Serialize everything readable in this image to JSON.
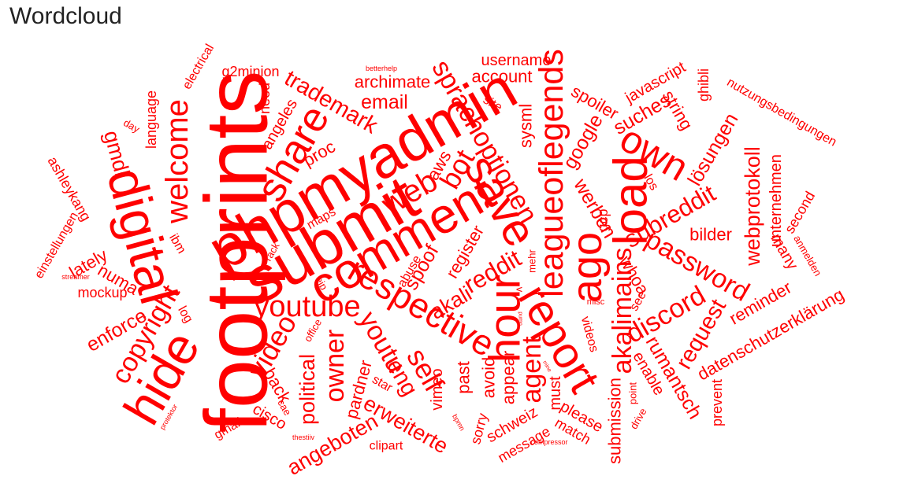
{
  "title": "Wordcloud",
  "word_color": "#ff0000",
  "words": [
    {
      "text": "footprints",
      "weight": 100,
      "rotate": -90
    },
    {
      "text": "submit",
      "weight": 72,
      "rotate": -30
    },
    {
      "text": "phpmyadmin",
      "weight": 68,
      "rotate": -30
    },
    {
      "text": "digital",
      "weight": 60,
      "rotate": 75
    },
    {
      "text": "hide",
      "weight": 58,
      "rotate": -60
    },
    {
      "text": "comment",
      "weight": 56,
      "rotate": -30
    },
    {
      "text": "load",
      "weight": 54,
      "rotate": -90
    },
    {
      "text": "save",
      "weight": 52,
      "rotate": 60
    },
    {
      "text": "hour",
      "weight": 50,
      "rotate": -90
    },
    {
      "text": "report",
      "weight": 50,
      "rotate": 60
    },
    {
      "text": "ago",
      "weight": 48,
      "rotate": -90
    },
    {
      "text": "share",
      "weight": 46,
      "rotate": -60
    },
    {
      "text": "own",
      "weight": 44,
      "rotate": 30
    },
    {
      "text": "respective",
      "weight": 40,
      "rotate": 30
    },
    {
      "text": "leagueoflegends",
      "weight": 38,
      "rotate": -90
    },
    {
      "text": "welcome",
      "weight": 36,
      "rotate": -90
    },
    {
      "text": "web",
      "weight": 36,
      "rotate": -30
    },
    {
      "text": "youtube",
      "weight": 34,
      "rotate": 0
    },
    {
      "text": "sprachoptionen",
      "weight": 30,
      "rotate": 60
    },
    {
      "text": "bot",
      "weight": 32,
      "rotate": -60
    },
    {
      "text": "self",
      "weight": 32,
      "rotate": 60
    },
    {
      "text": "video",
      "weight": 32,
      "rotate": -60
    },
    {
      "text": "akalimains",
      "weight": 30,
      "rotate": -90
    },
    {
      "text": "password",
      "weight": 30,
      "rotate": 30
    },
    {
      "text": "discord",
      "weight": 30,
      "rotate": -30
    },
    {
      "text": "copyright",
      "weight": 30,
      "rotate": -60
    },
    {
      "text": "owner",
      "weight": 30,
      "rotate": -90
    },
    {
      "text": "youtu",
      "weight": 30,
      "rotate": 60
    },
    {
      "text": "agent",
      "weight": 30,
      "rotate": -90
    },
    {
      "text": "subreddit",
      "weight": 28,
      "rotate": -30
    },
    {
      "text": "reddit",
      "weight": 28,
      "rotate": -30
    },
    {
      "text": "trademark",
      "weight": 26,
      "rotate": 30
    },
    {
      "text": "eng",
      "weight": 26,
      "rotate": 60
    },
    {
      "text": "request",
      "weight": 26,
      "rotate": -60
    },
    {
      "text": "webprotokoll",
      "weight": 24,
      "rotate": -90
    },
    {
      "text": "gmdl",
      "weight": 24,
      "rotate": 75
    },
    {
      "text": "angeboten",
      "weight": 24,
      "rotate": -30
    },
    {
      "text": "erweiterte",
      "weight": 24,
      "rotate": 30
    },
    {
      "text": "political",
      "weight": 24,
      "rotate": -90
    },
    {
      "text": "akali",
      "weight": 24,
      "rotate": -30
    },
    {
      "text": "spoof",
      "weight": 22,
      "rotate": -60
    },
    {
      "text": "google",
      "weight": 22,
      "rotate": -60
    },
    {
      "text": "suches",
      "weight": 22,
      "rotate": -30
    },
    {
      "text": "email",
      "weight": 22,
      "rotate": 0
    },
    {
      "text": "lösungen",
      "weight": 22,
      "rotate": -60
    },
    {
      "text": "werben",
      "weight": 22,
      "rotate": 60
    },
    {
      "text": "rumantsch",
      "weight": 22,
      "rotate": 60
    },
    {
      "text": "enforce",
      "weight": 22,
      "rotate": -30
    },
    {
      "text": "datenschutzerklärung",
      "weight": 20,
      "rotate": -30
    },
    {
      "text": "spoiler",
      "weight": 20,
      "rotate": 30
    },
    {
      "text": "archimate",
      "weight": 20,
      "rotate": 0
    },
    {
      "text": "proc",
      "weight": 20,
      "rotate": -30
    },
    {
      "text": "pardner",
      "weight": 20,
      "rotate": -75
    },
    {
      "text": "submission",
      "weight": 20,
      "rotate": -90
    },
    {
      "text": "whoa",
      "weight": 20,
      "rotate": 60
    },
    {
      "text": "account",
      "weight": 20,
      "rotate": 0
    },
    {
      "text": "username",
      "weight": 18,
      "rotate": 0
    },
    {
      "text": "string",
      "weight": 20,
      "rotate": 60
    },
    {
      "text": "reminder",
      "weight": 20,
      "rotate": -30
    },
    {
      "text": "sysml",
      "weight": 20,
      "rotate": -90
    },
    {
      "text": "bilder",
      "weight": 20,
      "rotate": 0
    },
    {
      "text": "lately",
      "weight": 20,
      "rotate": -30
    },
    {
      "text": "numa",
      "weight": 20,
      "rotate": 30
    },
    {
      "text": "register",
      "weight": 20,
      "rotate": -60
    },
    {
      "text": "back",
      "weight": 20,
      "rotate": 60
    },
    {
      "text": "avoid",
      "weight": 20,
      "rotate": -90
    },
    {
      "text": "past",
      "weight": 20,
      "rotate": -90
    },
    {
      "text": "appear",
      "weight": 20,
      "rotate": -90
    },
    {
      "text": "aws",
      "weight": 20,
      "rotate": -60
    },
    {
      "text": "angeles",
      "weight": 18,
      "rotate": -60
    },
    {
      "text": "javascript",
      "weight": 18,
      "rotate": -30
    },
    {
      "text": "unternehmen",
      "weight": 18,
      "rotate": -90
    },
    {
      "text": "many",
      "weight": 18,
      "rotate": 60
    },
    {
      "text": "cisco",
      "weight": 18,
      "rotate": 30
    },
    {
      "text": "schweiz",
      "weight": 18,
      "rotate": -30
    },
    {
      "text": "vimeo",
      "weight": 18,
      "rotate": -90
    },
    {
      "text": "please",
      "weight": 18,
      "rotate": 30
    },
    {
      "text": "must",
      "weight": 18,
      "rotate": -90
    },
    {
      "text": "enable",
      "weight": 18,
      "rotate": 60
    },
    {
      "text": "language",
      "weight": 16,
      "rotate": -90
    },
    {
      "text": "g2minion",
      "weight": 16,
      "rotate": 0
    },
    {
      "text": "need",
      "weight": 16,
      "rotate": -90
    },
    {
      "text": "ashleykang",
      "weight": 16,
      "rotate": 60
    },
    {
      "text": "ghibli",
      "weight": 16,
      "rotate": -90
    },
    {
      "text": "gcp",
      "weight": 16,
      "rotate": -90
    },
    {
      "text": "second",
      "weight": 16,
      "rotate": -60
    },
    {
      "text": "match",
      "weight": 16,
      "rotate": 30
    },
    {
      "text": "message",
      "weight": 16,
      "rotate": -30
    },
    {
      "text": "sorry",
      "weight": 16,
      "rotate": -75
    },
    {
      "text": "prevent",
      "weight": 16,
      "rotate": -90
    },
    {
      "text": "mockup",
      "weight": 16,
      "rotate": 0
    },
    {
      "text": "nutzungsbedingungen",
      "weight": 14,
      "rotate": 30
    },
    {
      "text": "electrical",
      "weight": 14,
      "rotate": -60
    },
    {
      "text": "einstellungen",
      "weight": 14,
      "rotate": -60
    },
    {
      "text": "abuse",
      "weight": 14,
      "rotate": -60
    },
    {
      "text": "videos",
      "weight": 14,
      "rotate": 75
    },
    {
      "text": "maps",
      "weight": 14,
      "rotate": -30
    },
    {
      "text": "gmail",
      "weight": 14,
      "rotate": -30
    },
    {
      "text": "clipart",
      "weight": 14,
      "rotate": 0
    },
    {
      "text": "los",
      "weight": 14,
      "rotate": 60
    },
    {
      "text": "site",
      "weight": 14,
      "rotate": 30
    },
    {
      "text": "see",
      "weight": 14,
      "rotate": -60
    },
    {
      "text": "star",
      "weight": 14,
      "rotate": 30
    },
    {
      "text": "ibm",
      "weight": 14,
      "rotate": 60
    },
    {
      "text": "log",
      "weight": 14,
      "rotate": 60
    },
    {
      "text": "drive",
      "weight": 12,
      "rotate": -60
    },
    {
      "text": "point",
      "weight": 12,
      "rotate": -90
    },
    {
      "text": "day",
      "weight": 12,
      "rotate": 30
    },
    {
      "text": "mehr",
      "weight": 12,
      "rotate": -90
    },
    {
      "text": "cae",
      "weight": 12,
      "rotate": 60
    },
    {
      "text": "eip",
      "weight": 12,
      "rotate": 60
    },
    {
      "text": "rack",
      "weight": 12,
      "rotate": -60
    },
    {
      "text": "office",
      "weight": 12,
      "rotate": -60
    },
    {
      "text": "anmelden",
      "weight": 12,
      "rotate": 60
    },
    {
      "text": "misc",
      "weight": 10,
      "rotate": 0
    },
    {
      "text": "v",
      "weight": 12,
      "rotate": 90
    },
    {
      "text": "bpmn",
      "weight": 8,
      "rotate": 60
    },
    {
      "text": "streamer",
      "weight": 8,
      "rotate": 0
    },
    {
      "text": "protektor",
      "weight": 8,
      "rotate": -60
    },
    {
      "text": "thestiiv",
      "weight": 8,
      "rotate": 0
    },
    {
      "text": "compressor",
      "weight": 8,
      "rotate": 0
    },
    {
      "text": "betterhelp",
      "weight": 8,
      "rotate": 0
    },
    {
      "text": "pump",
      "weight": 6,
      "rotate": 90
    },
    {
      "text": "mine",
      "weight": 6,
      "rotate": 60
    }
  ]
}
